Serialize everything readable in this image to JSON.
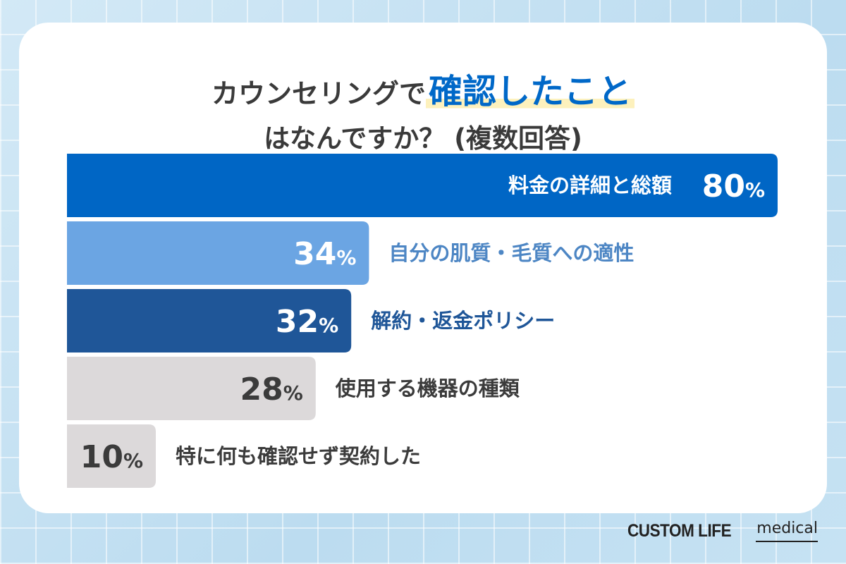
{
  "title": {
    "prefix": "カウンセリングで",
    "highlight": "確認したこと",
    "line2": "はなんですか？ (複数回答)"
  },
  "brand": {
    "main": "CUSTOM LIFE",
    "sub": "medical"
  },
  "chart_data": {
    "type": "bar",
    "orientation": "horizontal",
    "categories": [
      "料金の詳細と総額",
      "自分の肌質・毛質への適性",
      "解約・返金ポリシー",
      "使用する機器の種類",
      "特に何も確認せず契約した"
    ],
    "values": [
      80,
      34,
      32,
      28,
      10
    ],
    "value_suffix": "%",
    "xlim": [
      0,
      100
    ],
    "grid": false,
    "colors": [
      "#0066c5",
      "#6ba5e3",
      "#1f5698",
      "#dcd9da",
      "#dcd9da"
    ],
    "value_label_colors": [
      "#ffffff",
      "#ffffff",
      "#ffffff",
      "#3b3b3b",
      "#3b3b3b"
    ],
    "category_label_colors": [
      "#ffffff",
      "#4d86c4",
      "#1f5698",
      "#3b3b3b",
      "#3b3b3b"
    ]
  }
}
